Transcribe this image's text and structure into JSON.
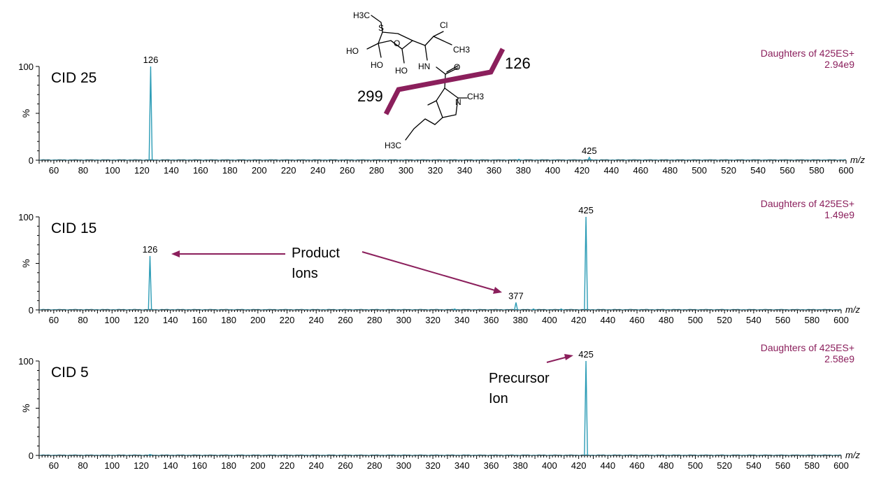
{
  "colors": {
    "accent": "#8b1f5c",
    "trace": "#2a9bb5",
    "axis": "#000000"
  },
  "chart_data": [
    {
      "type": "line",
      "label": "CID 25",
      "info_title": "Daughters of 425ES+",
      "info_intensity": "2.94e9",
      "xlabel": "m/z",
      "ylabel": "%",
      "xlim": [
        50,
        600
      ],
      "ylim": [
        0,
        100
      ],
      "x_ticks": [
        "60",
        "80",
        "100",
        "120",
        "140",
        "160",
        "180",
        "200",
        "220",
        "240",
        "260",
        "280",
        "300",
        "320",
        "340",
        "360",
        "380",
        "400",
        "420",
        "440",
        "460",
        "480",
        "500",
        "520",
        "540",
        "560",
        "580",
        "600"
      ],
      "y_ticks": [
        "0",
        "100"
      ],
      "peaks": [
        {
          "x": 126,
          "y": 100,
          "label": "126"
        },
        {
          "x": 377,
          "y": 1
        },
        {
          "x": 425,
          "y": 3,
          "label": "425"
        }
      ]
    },
    {
      "type": "line",
      "label": "CID 15",
      "info_title": "Daughters of 425ES+",
      "info_intensity": "1.49e9",
      "xlabel": "m/z",
      "ylabel": "%",
      "xlim": [
        50,
        600
      ],
      "ylim": [
        0,
        100
      ],
      "x_ticks": [
        "60",
        "80",
        "100",
        "120",
        "140",
        "160",
        "180",
        "200",
        "220",
        "240",
        "260",
        "280",
        "300",
        "320",
        "340",
        "360",
        "380",
        "400",
        "420",
        "440",
        "460",
        "480",
        "500",
        "520",
        "540",
        "560",
        "580",
        "600"
      ],
      "y_ticks": [
        "0",
        "100"
      ],
      "peaks": [
        {
          "x": 126,
          "y": 58,
          "label": "126"
        },
        {
          "x": 335,
          "y": 1
        },
        {
          "x": 377,
          "y": 8,
          "label": "377"
        },
        {
          "x": 389,
          "y": 1
        },
        {
          "x": 408,
          "y": 1
        },
        {
          "x": 425,
          "y": 100,
          "label": "425"
        }
      ]
    },
    {
      "type": "line",
      "label": "CID 5",
      "info_title": "Daughters of 425ES+",
      "info_intensity": "2.58e9",
      "xlabel": "m/z",
      "ylabel": "%",
      "xlim": [
        50,
        600
      ],
      "ylim": [
        0,
        100
      ],
      "x_ticks": [
        "60",
        "80",
        "100",
        "120",
        "140",
        "160",
        "180",
        "200",
        "220",
        "240",
        "260",
        "280",
        "300",
        "320",
        "340",
        "360",
        "380",
        "400",
        "420",
        "440",
        "460",
        "480",
        "500",
        "520",
        "540",
        "560",
        "580",
        "600"
      ],
      "y_ticks": [
        "0",
        "100"
      ],
      "peaks": [
        {
          "x": 126,
          "y": 1
        },
        {
          "x": 425,
          "y": 100,
          "label": "425"
        }
      ]
    }
  ],
  "annotations": {
    "product_line1": "Product",
    "product_line2": "Ions",
    "precursor_line1": "Precursor",
    "precursor_line2": "Ion",
    "cleave_left": "299",
    "cleave_right": "126"
  },
  "molecule": {
    "atoms": [
      "H3C",
      "S",
      "HO",
      "O",
      "HO",
      "HO",
      "Cl",
      "CH3",
      "HN",
      "O",
      "N",
      "CH3",
      "H3C"
    ]
  }
}
